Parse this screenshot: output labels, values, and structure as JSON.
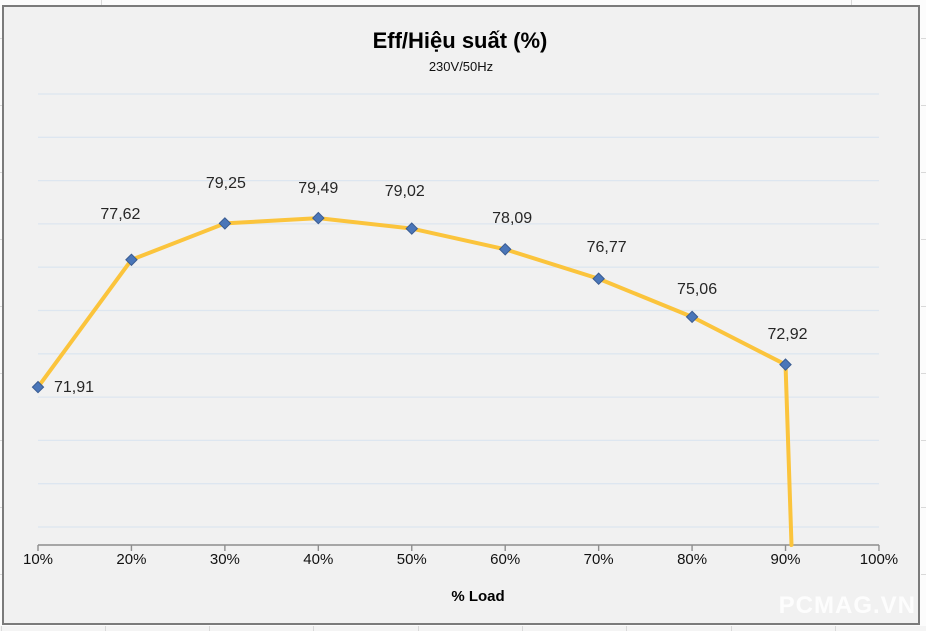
{
  "watermark": {
    "text": "PCMAG.VN"
  },
  "chart_data": {
    "type": "line",
    "title": "Eff/Hiệu suất (%)",
    "subtitle": "230V/50Hz",
    "xlabel": "% Load",
    "ylabel": "",
    "categories": [
      "10%",
      "20%",
      "30%",
      "40%",
      "50%",
      "60%",
      "70%",
      "80%",
      "90%",
      "100%"
    ],
    "values": [
      71.91,
      77.62,
      79.25,
      79.49,
      79.02,
      78.09,
      76.77,
      75.06,
      72.92
    ],
    "point_labels": [
      "71,91",
      "77,62",
      "79,25",
      "79,49",
      "79,02",
      "78,09",
      "76,77",
      "75,06",
      "72,92"
    ],
    "line_drops_off_scale_after_last_point": true,
    "y_axis_labels_visible": false,
    "ylim": [
      65,
      86
    ],
    "grid": true,
    "legend": "none",
    "colors": {
      "line": "#FBC43C",
      "marker": "#4A76B9",
      "marker_border": "#3A5C92",
      "grid": "#DDE6F0",
      "axis": "#8E8E8E",
      "chart_bg": "#F1F1F1",
      "outer_bg": "#FCFCFC",
      "border": "#7B7B7B",
      "watermark": "#FFFFFF"
    }
  }
}
